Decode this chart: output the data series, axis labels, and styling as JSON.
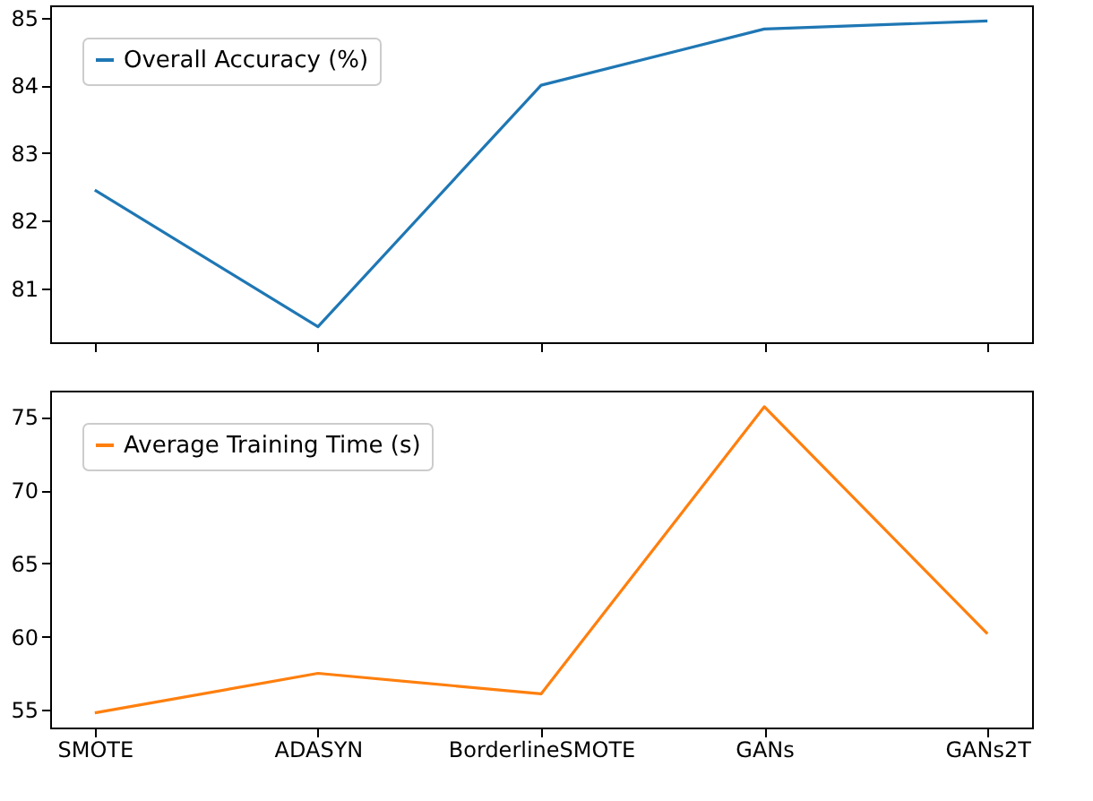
{
  "chart_data": [
    {
      "type": "line",
      "categories": [
        null,
        null,
        null,
        null,
        null
      ],
      "series": [
        {
          "name": "Overall Accuracy (%)",
          "color": "#1f77b4",
          "values": [
            82.45,
            80.43,
            84.0,
            84.83,
            84.95
          ]
        }
      ],
      "ylim": [
        80.2,
        85.18
      ],
      "yticks": [
        81,
        82,
        83,
        84,
        85
      ],
      "grid": false,
      "legend": "top left",
      "tick_labels": "y"
    },
    {
      "type": "line",
      "categories": [
        "SMOTE",
        "ADASYN",
        "BorderlineSMOTE",
        "GANs",
        "GANs2T"
      ],
      "series": [
        {
          "name": "Average Training Time (s)",
          "color": "#ff7f0e",
          "values": [
            54.8,
            57.5,
            56.1,
            75.7,
            60.2
          ]
        }
      ],
      "ylim": [
        53.8,
        76.8
      ],
      "yticks": [
        55,
        60,
        65,
        70,
        75
      ],
      "grid": false,
      "legend": "top left"
    }
  ]
}
